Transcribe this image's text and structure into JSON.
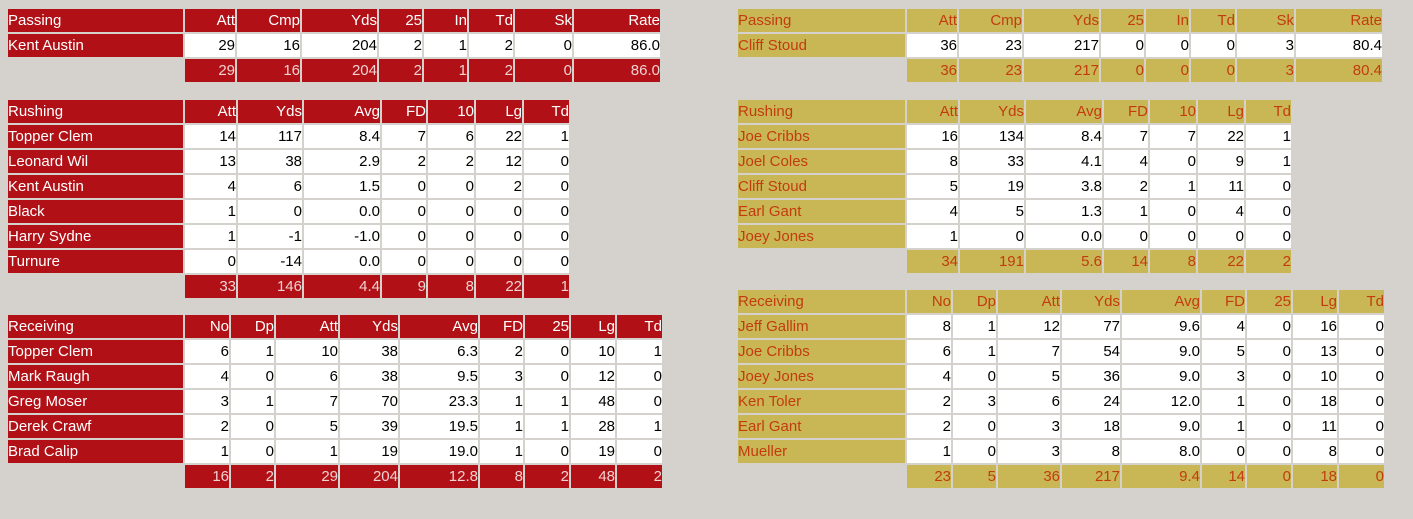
{
  "page": {
    "background_color": "#d5d2cd",
    "cell_background": "#ffffff",
    "cell_text_color": "#000000"
  },
  "teams": [
    {
      "side": "left",
      "colors": {
        "primary": "#b11116",
        "header_text": "#ffffff",
        "player_name_text": "#ffffff",
        "totals_text": "#f0d2d2"
      },
      "tables": [
        {
          "title": "Passing",
          "columns": [
            "Att",
            "Cmp",
            "Yds",
            "25",
            "In",
            "Td",
            "Sk",
            "Rate"
          ],
          "rows": [
            {
              "name": "Kent Austin",
              "values": [
                "29",
                "16",
                "204",
                "2",
                "1",
                "2",
                "0",
                "86.0"
              ]
            }
          ],
          "totals": [
            "29",
            "16",
            "204",
            "2",
            "1",
            "2",
            "0",
            "86.0"
          ]
        },
        {
          "title": "Rushing",
          "columns": [
            "Att",
            "Yds",
            "Avg",
            "FD",
            "10",
            "Lg",
            "Td"
          ],
          "rows": [
            {
              "name": "Topper Clem",
              "values": [
                "14",
                "117",
                "8.4",
                "7",
                "6",
                "22",
                "1"
              ]
            },
            {
              "name": "Leonard Wil",
              "values": [
                "13",
                "38",
                "2.9",
                "2",
                "2",
                "12",
                "0"
              ]
            },
            {
              "name": "Kent Austin",
              "values": [
                "4",
                "6",
                "1.5",
                "0",
                "0",
                "2",
                "0"
              ]
            },
            {
              "name": "Black",
              "values": [
                "1",
                "0",
                "0.0",
                "0",
                "0",
                "0",
                "0"
              ]
            },
            {
              "name": "Harry Sydne",
              "values": [
                "1",
                "-1",
                "-1.0",
                "0",
                "0",
                "0",
                "0"
              ]
            },
            {
              "name": "Turnure",
              "values": [
                "0",
                "-14",
                "0.0",
                "0",
                "0",
                "0",
                "0"
              ]
            }
          ],
          "totals": [
            "33",
            "146",
            "4.4",
            "9",
            "8",
            "22",
            "1"
          ]
        },
        {
          "title": "Receiving",
          "columns": [
            "No",
            "Dp",
            "Att",
            "Yds",
            "Avg",
            "FD",
            "25",
            "Lg",
            "Td"
          ],
          "rows": [
            {
              "name": "Topper Clem",
              "values": [
                "6",
                "1",
                "10",
                "38",
                "6.3",
                "2",
                "0",
                "10",
                "1"
              ]
            },
            {
              "name": "Mark Raugh",
              "values": [
                "4",
                "0",
                "6",
                "38",
                "9.5",
                "3",
                "0",
                "12",
                "0"
              ]
            },
            {
              "name": "Greg Moser",
              "values": [
                "3",
                "1",
                "7",
                "70",
                "23.3",
                "1",
                "1",
                "48",
                "0"
              ]
            },
            {
              "name": "Derek Crawf",
              "values": [
                "2",
                "0",
                "5",
                "39",
                "19.5",
                "1",
                "1",
                "28",
                "1"
              ]
            },
            {
              "name": "Brad Calip",
              "values": [
                "1",
                "0",
                "1",
                "19",
                "19.0",
                "1",
                "0",
                "19",
                "0"
              ]
            }
          ],
          "totals": [
            "16",
            "2",
            "29",
            "204",
            "12.8",
            "8",
            "2",
            "48",
            "2"
          ]
        }
      ]
    },
    {
      "side": "right",
      "colors": {
        "primary": "#c9b654",
        "header_text": "#c23c10",
        "player_name_text": "#c23c10",
        "totals_text": "#c23c10"
      },
      "tables": [
        {
          "title": "Passing",
          "columns": [
            "Att",
            "Cmp",
            "Yds",
            "25",
            "In",
            "Td",
            "Sk",
            "Rate"
          ],
          "rows": [
            {
              "name": "Cliff Stoud",
              "values": [
                "36",
                "23",
                "217",
                "0",
                "0",
                "0",
                "3",
                "80.4"
              ]
            }
          ],
          "totals": [
            "36",
            "23",
            "217",
            "0",
            "0",
            "0",
            "3",
            "80.4"
          ]
        },
        {
          "title": "Rushing",
          "columns": [
            "Att",
            "Yds",
            "Avg",
            "FD",
            "10",
            "Lg",
            "Td"
          ],
          "rows": [
            {
              "name": "Joe Cribbs",
              "values": [
                "16",
                "134",
                "8.4",
                "7",
                "7",
                "22",
                "1"
              ]
            },
            {
              "name": "Joel Coles",
              "values": [
                "8",
                "33",
                "4.1",
                "4",
                "0",
                "9",
                "1"
              ]
            },
            {
              "name": "Cliff Stoud",
              "values": [
                "5",
                "19",
                "3.8",
                "2",
                "1",
                "11",
                "0"
              ]
            },
            {
              "name": "Earl Gant",
              "values": [
                "4",
                "5",
                "1.3",
                "1",
                "0",
                "4",
                "0"
              ]
            },
            {
              "name": "Joey Jones",
              "values": [
                "1",
                "0",
                "0.0",
                "0",
                "0",
                "0",
                "0"
              ]
            }
          ],
          "totals": [
            "34",
            "191",
            "5.6",
            "14",
            "8",
            "22",
            "2"
          ]
        },
        {
          "title": "Receiving",
          "columns": [
            "No",
            "Dp",
            "Att",
            "Yds",
            "Avg",
            "FD",
            "25",
            "Lg",
            "Td"
          ],
          "rows": [
            {
              "name": "Jeff Gallim",
              "values": [
                "8",
                "1",
                "12",
                "77",
                "9.6",
                "4",
                "0",
                "16",
                "0"
              ]
            },
            {
              "name": "Joe Cribbs",
              "values": [
                "6",
                "1",
                "7",
                "54",
                "9.0",
                "5",
                "0",
                "13",
                "0"
              ]
            },
            {
              "name": "Joey Jones",
              "values": [
                "4",
                "0",
                "5",
                "36",
                "9.0",
                "3",
                "0",
                "10",
                "0"
              ]
            },
            {
              "name": "Ken Toler",
              "values": [
                "2",
                "3",
                "6",
                "24",
                "12.0",
                "1",
                "0",
                "18",
                "0"
              ]
            },
            {
              "name": "Earl Gant",
              "values": [
                "2",
                "0",
                "3",
                "18",
                "9.0",
                "1",
                "0",
                "11",
                "0"
              ]
            },
            {
              "name": "Mueller",
              "values": [
                "1",
                "0",
                "3",
                "8",
                "8.0",
                "0",
                "0",
                "8",
                "0"
              ]
            }
          ],
          "totals": [
            "23",
            "5",
            "36",
            "217",
            "9.4",
            "14",
            "0",
            "18",
            "0"
          ]
        }
      ]
    }
  ]
}
